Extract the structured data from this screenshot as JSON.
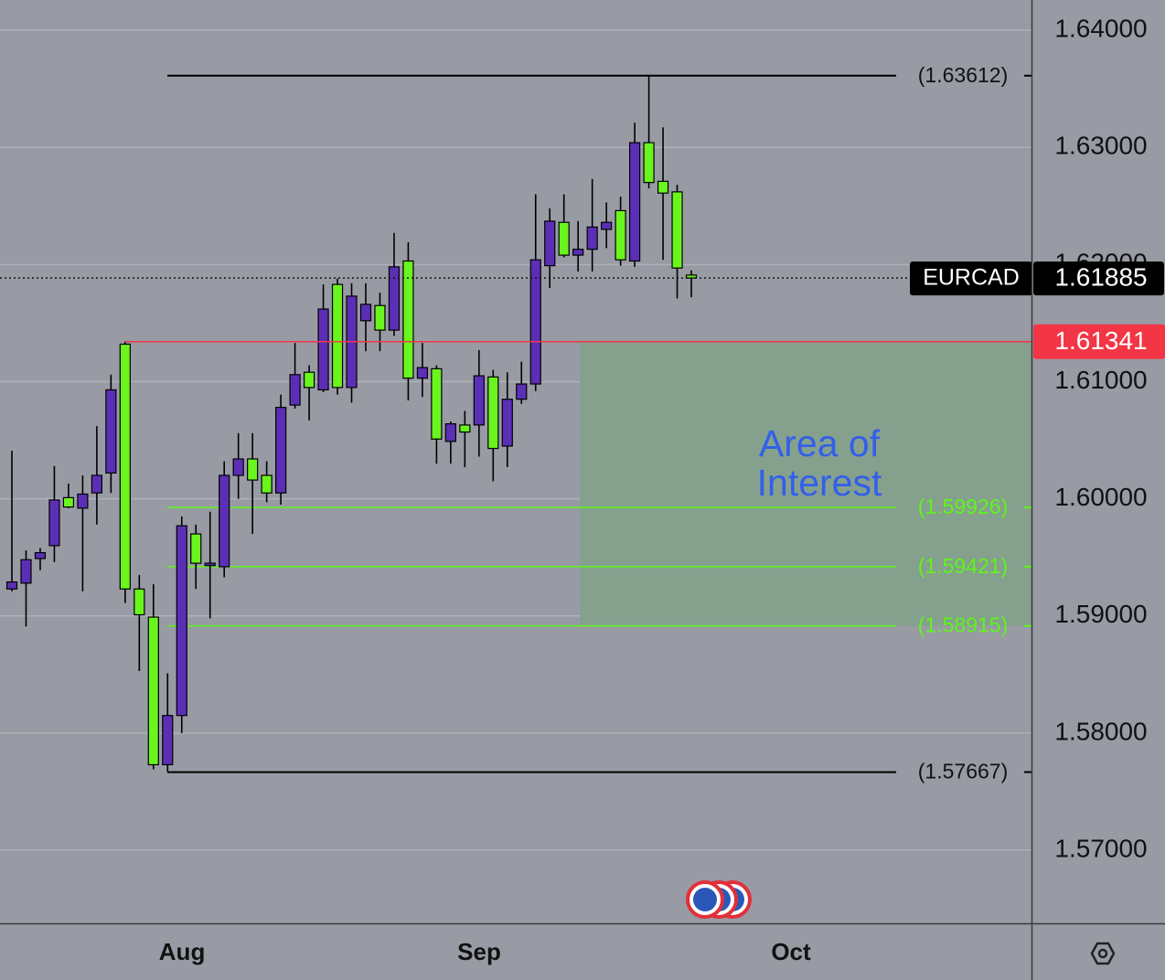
{
  "chart_data": {
    "type": "candlestick",
    "symbol": "EURCAD",
    "open": [
      1.5923,
      1.5928,
      1.5949,
      1.596,
      1.6001,
      1.5992,
      1.6005,
      1.6022,
      1.6132,
      1.5923,
      1.5899,
      1.5773,
      1.5815,
      1.597,
      1.5943,
      1.5942,
      1.602,
      1.6034,
      1.602,
      1.6005,
      1.608,
      1.6108,
      1.6093,
      1.6183,
      1.6095,
      1.6152,
      1.6165,
      1.6144,
      1.6203,
      1.6103,
      1.6111,
      1.6049,
      1.6063,
      1.6063,
      1.6104,
      1.6045,
      1.6085,
      1.6098,
      1.6199,
      1.6236,
      1.6208,
      1.6213,
      1.623,
      1.6246,
      1.6203,
      1.6304,
      1.6271,
      1.6262,
      1.6191
    ],
    "high": [
      1.6041,
      1.5956,
      1.5958,
      1.6028,
      1.6013,
      1.602,
      1.6062,
      1.6106,
      1.6134,
      1.5935,
      1.5927,
      1.5851,
      1.5985,
      1.5978,
      1.5989,
      1.6032,
      1.6056,
      1.6056,
      1.6032,
      1.6089,
      1.6133,
      1.6114,
      1.6183,
      1.6188,
      1.6184,
      1.6184,
      1.6176,
      1.6227,
      1.6219,
      1.6133,
      1.6114,
      1.6066,
      1.6075,
      1.6127,
      1.611,
      1.6108,
      1.6117,
      1.626,
      1.6248,
      1.626,
      1.6237,
      1.6273,
      1.6253,
      1.6258,
      1.6321,
      1.6361,
      1.6317,
      1.6268,
      1.6195
    ],
    "low": [
      1.5921,
      1.5891,
      1.5939,
      1.5946,
      1.5992,
      1.5921,
      1.5978,
      1.6005,
      1.5911,
      1.5853,
      1.5769,
      1.5767,
      1.58,
      1.5923,
      1.5898,
      1.5933,
      1.6,
      1.597,
      1.5997,
      1.5995,
      1.6077,
      1.6067,
      1.6091,
      1.6089,
      1.6082,
      1.6126,
      1.6126,
      1.6139,
      1.6084,
      1.6087,
      1.603,
      1.603,
      1.6027,
      1.6036,
      1.6015,
      1.6027,
      1.6081,
      1.6092,
      1.618,
      1.6206,
      1.6194,
      1.6194,
      1.6214,
      1.6199,
      1.6198,
      1.6265,
      1.6204,
      1.6171,
      1.6172
    ],
    "close": [
      1.5929,
      1.5948,
      1.5954,
      1.5999,
      1.5993,
      1.6004,
      1.602,
      1.6093,
      1.5923,
      1.5901,
      1.5773,
      1.5815,
      1.5977,
      1.5945,
      1.5945,
      1.602,
      1.6034,
      1.6016,
      1.6005,
      1.6078,
      1.6106,
      1.6095,
      1.6162,
      1.6095,
      1.6173,
      1.6166,
      1.6144,
      1.6198,
      1.6103,
      1.6112,
      1.6051,
      1.6064,
      1.6057,
      1.6105,
      1.6043,
      1.6085,
      1.6098,
      1.6204,
      1.6237,
      1.6208,
      1.6213,
      1.6232,
      1.6236,
      1.6204,
      1.6304,
      1.627,
      1.6261,
      1.6197,
      1.61885
    ],
    "up_color": "#5b2fb5",
    "down_color": "#6af51e",
    "xlim": [
      -0.84,
      72.03
    ],
    "xticks": [
      {
        "value": 12.02,
        "label": "Aug"
      },
      {
        "value": 33.01,
        "label": "Sep"
      },
      {
        "value": 55.04,
        "label": "Oct"
      }
    ],
    "ylim": [
      1.56376,
      1.64258
    ],
    "yticks": [
      {
        "value": 1.57,
        "label": "1.57000"
      },
      {
        "value": 1.58,
        "label": "1.58000"
      },
      {
        "value": 1.59,
        "label": "1.59000"
      },
      {
        "value": 1.6,
        "label": "1.60000"
      },
      {
        "value": 1.61,
        "label": "1.61000"
      },
      {
        "value": 1.62,
        "label": "1.62000"
      },
      {
        "value": 1.63,
        "label": "1.63000"
      },
      {
        "value": 1.64,
        "label": "1.64000"
      }
    ],
    "grid": true,
    "last_price": {
      "value": 1.61885,
      "label": "1.61885"
    },
    "levels": [
      {
        "value": 1.63612,
        "label": "(1.63612)",
        "color": "#000000"
      },
      {
        "value": 1.59926,
        "label": "(1.59926)",
        "color": "#5ef51a"
      },
      {
        "value": 1.59421,
        "label": "(1.59421)",
        "color": "#5ef51a"
      },
      {
        "value": 1.58915,
        "label": "(1.58915)",
        "color": "#5ef51a"
      },
      {
        "value": 1.57667,
        "label": "(1.57667)",
        "color": "#000000"
      }
    ],
    "alert": {
      "value": 1.61341,
      "label": "1.61341",
      "color": "#f23645"
    },
    "zone": {
      "label": "Area of Interest",
      "top": 1.61341,
      "bottom": 1.58915,
      "color": "#86a08e"
    }
  }
}
